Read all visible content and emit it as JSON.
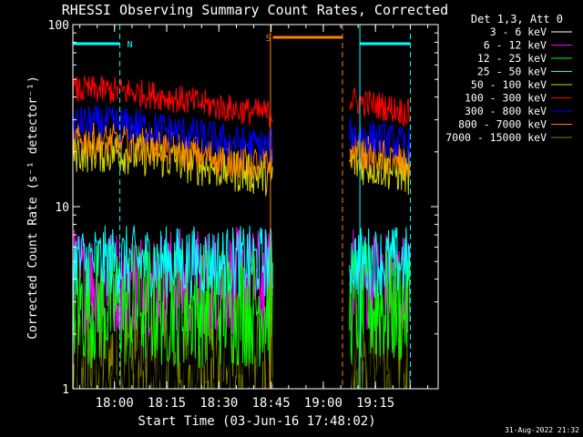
{
  "chart_data": {
    "type": "line",
    "title": "RHESSI Observing Summary Count Rates, Corrected",
    "xlabel": "Start Time (03-Jun-16 17:48:02)",
    "ylabel": "Corrected Count Rate (s⁻¹ detector⁻¹)",
    "y_scale": "log",
    "ylim": [
      1,
      100
    ],
    "x_unit": "minutes since 17:48:02",
    "xlim": [
      0,
      105
    ],
    "x_ticks": [
      {
        "label": "18:00",
        "value": 11.97
      },
      {
        "label": "18:15",
        "value": 26.97
      },
      {
        "label": "18:30",
        "value": 41.97
      },
      {
        "label": "18:45",
        "value": 56.97
      },
      {
        "label": "19:00",
        "value": 71.97
      },
      {
        "label": "19:15",
        "value": 86.97
      }
    ],
    "y_ticks": [
      {
        "label": "1",
        "value": 1
      },
      {
        "label": "10",
        "value": 10
      },
      {
        "label": "100",
        "value": 100
      }
    ],
    "legend_header": "Det 1,3, Att 0",
    "legend_position": "outside-right",
    "data_gap": [
      57.5,
      79.5
    ],
    "series": [
      {
        "name": "3 - 6 keV",
        "color": "#000000",
        "level": 1.5,
        "noise": 0.35
      },
      {
        "name": "6 - 12 keV",
        "color": "#ff00ff",
        "level": 3.9,
        "noise": 0.3
      },
      {
        "name": "12 - 25 keV",
        "color": "#00ff00",
        "level": 2.9,
        "noise": 0.35
      },
      {
        "name": "25 - 50 keV",
        "color": "#00ffff",
        "level": 5.0,
        "noise": 0.2
      },
      {
        "name": "50 - 100 keV",
        "color": "#d4d400",
        "level": 17.5,
        "noise": 0.12
      },
      {
        "name": "100 - 300 keV",
        "color": "#ff0000",
        "level": 38,
        "noise": 0.08
      },
      {
        "name": "300 - 800 keV",
        "color": "#0000ff",
        "level": 25,
        "noise": 0.1
      },
      {
        "name": "800 - 7000 keV",
        "color": "#ff8000",
        "level": 20,
        "noise": 0.1
      },
      {
        "name": "7000 - 15000 keV",
        "color": "#808000",
        "level": 1.4,
        "noise": 0.4
      }
    ],
    "annotations": [
      {
        "label": "N",
        "color": "#00ffff",
        "x_start": -2,
        "x_end": 13.5
      },
      {
        "label": "S",
        "color": "#ff8000",
        "x_start": 57.5,
        "x_end": 77.5
      },
      {
        "label": "",
        "color": "#00ffff",
        "x_start": 82.5,
        "x_end": 97
      }
    ],
    "vlines": [
      {
        "x": 13.5,
        "color": "#00ffff",
        "dashed": true
      },
      {
        "x": 56.8,
        "color": "#ff8000",
        "dashed": false
      },
      {
        "x": 77.5,
        "color": "#ff8000",
        "dashed": true
      },
      {
        "x": 82.5,
        "color": "#00ffff",
        "dashed": false
      },
      {
        "x": 97.0,
        "color": "#00ffff",
        "dashed": true
      }
    ]
  },
  "footer_timestamp": "31-Aug-2022 21:32"
}
